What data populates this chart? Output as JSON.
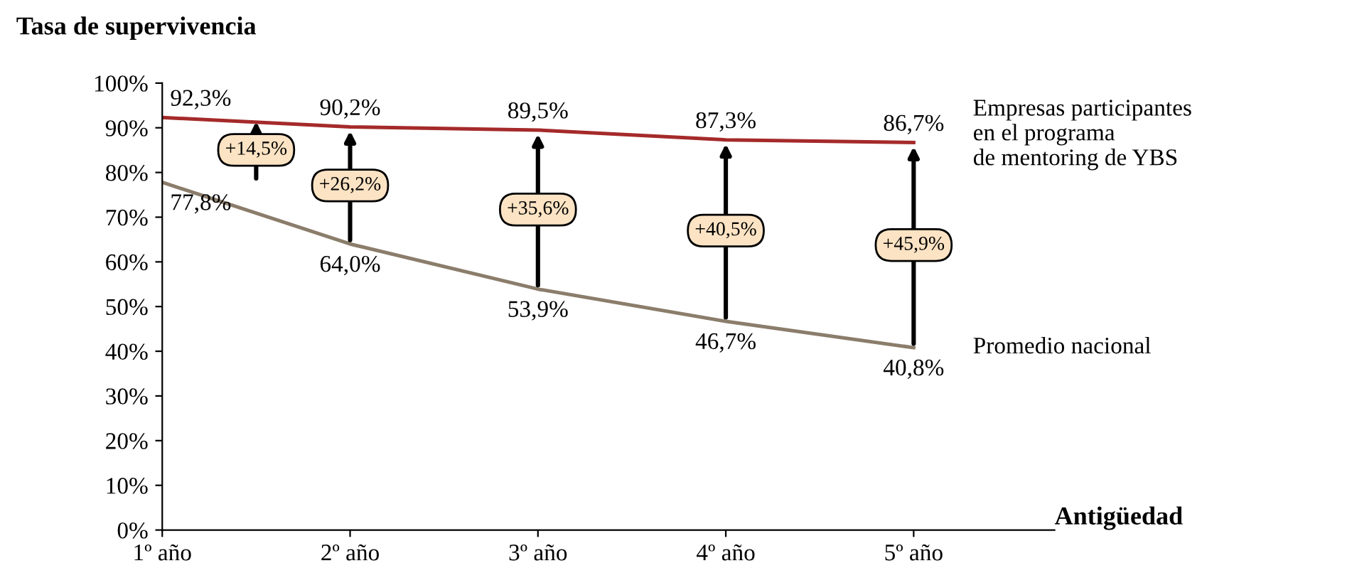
{
  "chart_data": {
    "type": "line",
    "ylabel": "Tasa de supervivencia",
    "xlabel": "Antigüedad",
    "categories": [
      "1º año",
      "2º año",
      "3º año",
      "4º año",
      "5º año"
    ],
    "series": [
      {
        "name": "Empresas participantes\nen el programa\nde mentoring de YBS",
        "color": "#a52a2a",
        "values": [
          92.3,
          90.2,
          89.5,
          87.3,
          86.7
        ],
        "value_labels": [
          "92,3%",
          "90,2%",
          "89,5%",
          "87,3%",
          "86,7%"
        ]
      },
      {
        "name": "Promedio nacional",
        "color": "#8b7d6b",
        "values": [
          77.8,
          64.0,
          53.9,
          46.7,
          40.8
        ],
        "value_labels": [
          "77,8%",
          "64,0%",
          "53,9%",
          "46,7%",
          "40,8%"
        ]
      }
    ],
    "annotations": [
      "+14,5%",
      "+26,2%",
      "+35,6%",
      "+40,5%",
      "+45,9%"
    ],
    "ylim": [
      0,
      100
    ],
    "yticks": [
      {
        "value": 0,
        "label": "0%"
      },
      {
        "value": 10,
        "label": "10%"
      },
      {
        "value": 20,
        "label": "20%"
      },
      {
        "value": 30,
        "label": "30%"
      },
      {
        "value": 40,
        "label": "40%"
      },
      {
        "value": 50,
        "label": "50%"
      },
      {
        "value": 60,
        "label": "60%"
      },
      {
        "value": 70,
        "label": "70%"
      },
      {
        "value": 80,
        "label": "80%"
      },
      {
        "value": 90,
        "label": "90%"
      },
      {
        "value": 100,
        "label": "100%"
      }
    ],
    "grid": false,
    "legend": false,
    "marker": "none",
    "line_style": "solid"
  }
}
